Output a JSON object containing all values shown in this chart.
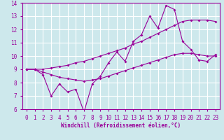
{
  "x_data": [
    0,
    1,
    2,
    3,
    4,
    5,
    6,
    7,
    8,
    9,
    10,
    11,
    12,
    13,
    14,
    15,
    16,
    17,
    18,
    19,
    20,
    21,
    22,
    23
  ],
  "y_main": [
    9.0,
    9.0,
    8.6,
    7.0,
    7.9,
    7.3,
    7.5,
    5.8,
    7.9,
    8.5,
    9.5,
    10.3,
    9.6,
    11.1,
    11.6,
    13.0,
    12.1,
    13.8,
    13.5,
    11.1,
    10.5,
    9.7,
    9.6,
    10.1
  ],
  "y_upper": [
    9.0,
    9.0,
    9.0,
    9.1,
    9.2,
    9.3,
    9.5,
    9.6,
    9.8,
    10.0,
    10.2,
    10.4,
    10.6,
    10.9,
    11.1,
    11.4,
    11.7,
    12.0,
    12.3,
    12.6,
    12.7,
    12.7,
    12.7,
    12.6
  ],
  "y_lower": [
    9.0,
    9.0,
    8.8,
    8.6,
    8.4,
    8.3,
    8.2,
    8.1,
    8.2,
    8.3,
    8.5,
    8.7,
    8.9,
    9.1,
    9.3,
    9.5,
    9.7,
    9.9,
    10.1,
    10.2,
    10.2,
    10.1,
    10.0,
    10.0
  ],
  "line_color": "#990099",
  "bg_color": "#cde8ec",
  "grid_color": "#ffffff",
  "xlabel": "Windchill (Refroidissement éolien,°C)",
  "ylim": [
    6,
    14
  ],
  "xlim": [
    -0.5,
    23.5
  ],
  "yticks": [
    6,
    7,
    8,
    9,
    10,
    11,
    12,
    13,
    14
  ],
  "xticks": [
    0,
    1,
    2,
    3,
    4,
    5,
    6,
    7,
    8,
    9,
    10,
    11,
    12,
    13,
    14,
    15,
    16,
    17,
    18,
    19,
    20,
    21,
    22,
    23
  ],
  "xlabel_fontsize": 5.5,
  "tick_fontsize": 5.5
}
